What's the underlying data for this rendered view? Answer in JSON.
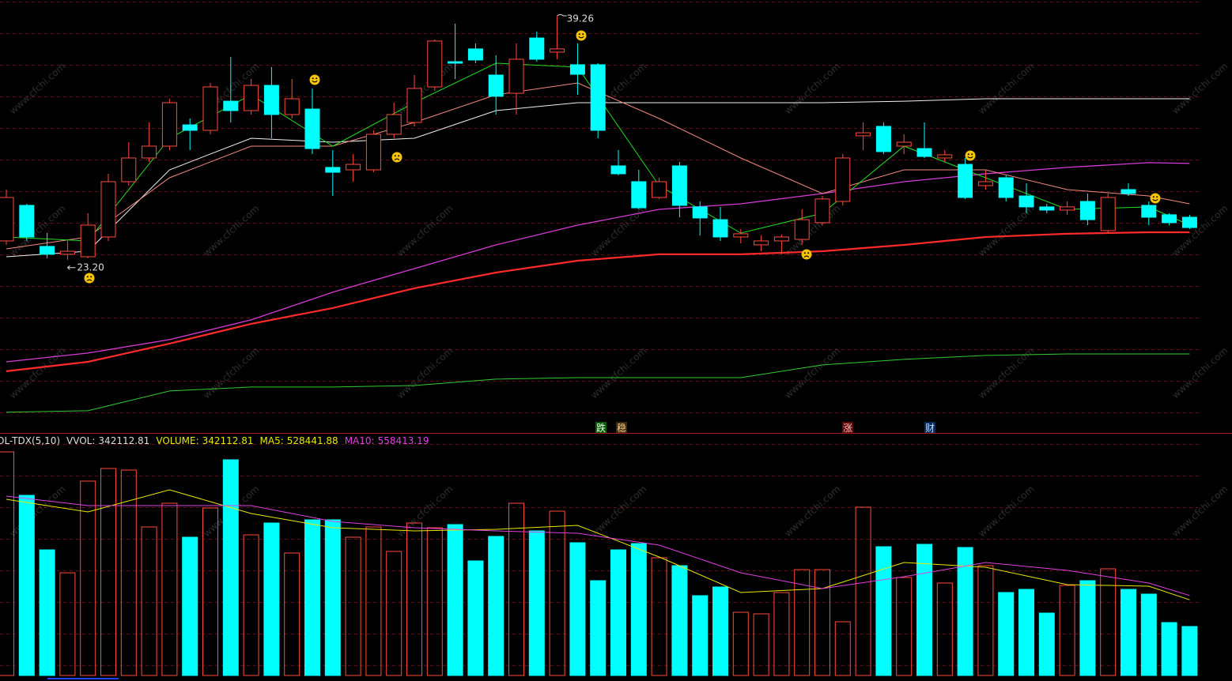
{
  "chart_data": [
    {
      "type": "candlestick",
      "ylim": [
        11.8,
        40.3
      ],
      "up_color": "#ff4a3d",
      "down_color": "#00ffff",
      "open": [
        24.44,
        26.78,
        24.08,
        23.56,
        23.4,
        24.7,
        28.34,
        29.9,
        30.68,
        32.08,
        31.72,
        33.64,
        33.02,
        34.68,
        32.76,
        33.12,
        29.28,
        29.12,
        29.12,
        31.46,
        32.24,
        34.58,
        36.24,
        37.08,
        35.36,
        34.16,
        37.8,
        36.87,
        36.04,
        36.04,
        29.38,
        28.34,
        27.3,
        29.38,
        26.68,
        25.84,
        24.7,
        24.18,
        24.44,
        24.54,
        25.64,
        27.04,
        31.36,
        31.98,
        30.68,
        30.52,
        29.9,
        29.48,
        28.08,
        28.6,
        27.4,
        26.68,
        26.47,
        27.04,
        25.12,
        27.82,
        26.78,
        26.16,
        26.0
      ],
      "high": [
        27.82,
        26.88,
        24.96,
        24.44,
        26.26,
        28.86,
        30.94,
        32.24,
        33.8,
        32.5,
        34.84,
        36.56,
        35.1,
        35.88,
        35.1,
        34.48,
        30.42,
        30.16,
        31.72,
        33.54,
        35.36,
        37.7,
        38.74,
        37.44,
        36.66,
        37.44,
        38.22,
        39.26,
        37.44,
        36.14,
        30.42,
        29.12,
        28.6,
        29.64,
        27.04,
        26.68,
        25.22,
        24.8,
        24.86,
        26.52,
        27.4,
        30.16,
        32.24,
        32.24,
        31.46,
        32.24,
        30.42,
        29.9,
        29.12,
        28.76,
        28.24,
        26.88,
        27.04,
        27.56,
        27.56,
        28.24,
        27.04,
        26.26,
        26.16
      ],
      "low": [
        24.18,
        24.44,
        23.3,
        23.2,
        23.3,
        24.44,
        28.08,
        29.64,
        30.42,
        30.42,
        31.46,
        32.24,
        32.76,
        31.2,
        32.5,
        30.16,
        27.4,
        28.34,
        28.96,
        31.2,
        31.98,
        34.32,
        35.1,
        36.14,
        32.76,
        32.76,
        36.24,
        36.4,
        34.06,
        31.2,
        28.76,
        26.52,
        27.2,
        26.0,
        24.8,
        24.44,
        24.28,
        23.76,
        23.56,
        24.18,
        25.48,
        26.78,
        30.42,
        30.16,
        30.16,
        29.9,
        29.64,
        27.2,
        27.82,
        27.04,
        26.26,
        26.26,
        26.16,
        25.48,
        24.96,
        27.4,
        25.48,
        25.48,
        25.22
      ],
      "close": [
        27.3,
        24.7,
        23.56,
        23.76,
        25.48,
        28.34,
        29.9,
        30.68,
        33.54,
        31.72,
        34.58,
        33.02,
        34.68,
        32.76,
        33.8,
        30.52,
        28.96,
        29.48,
        31.46,
        32.76,
        34.48,
        37.6,
        36.14,
        36.35,
        33.96,
        36.4,
        36.4,
        37.08,
        35.41,
        31.72,
        28.86,
        26.62,
        28.34,
        26.78,
        25.95,
        24.7,
        24.91,
        24.44,
        24.7,
        25.84,
        27.2,
        29.9,
        31.56,
        30.32,
        30.94,
        30.0,
        30.11,
        27.3,
        28.34,
        27.3,
        26.68,
        26.47,
        26.68,
        25.84,
        27.3,
        27.56,
        26.0,
        25.64,
        25.32
      ],
      "lines": [
        {
          "color": "#ff2a2a",
          "width": 2.2,
          "x": [
            0,
            4,
            8,
            12,
            16,
            20,
            24,
            28,
            32,
            36,
            40,
            44,
            48,
            52,
            56,
            58
          ],
          "values": [
            15.86,
            16.48,
            17.68,
            18.98,
            20.02,
            21.32,
            22.36,
            23.14,
            23.56,
            23.56,
            23.76,
            24.18,
            24.7,
            24.91,
            25.01,
            25.01
          ]
        },
        {
          "color": "#d63cd6",
          "width": 1.3,
          "x": [
            0,
            4,
            8,
            12,
            16,
            20,
            24,
            28,
            32,
            36,
            40,
            44,
            48,
            52,
            56,
            58
          ],
          "values": [
            16.48,
            17.06,
            17.94,
            19.24,
            21.06,
            22.62,
            24.18,
            25.48,
            26.52,
            26.88,
            27.56,
            28.34,
            28.86,
            29.28,
            29.59,
            29.54
          ]
        },
        {
          "color": "#33cc33",
          "width": 1,
          "x": [
            0,
            4,
            8,
            12,
            16,
            20,
            24,
            28,
            32,
            36,
            40,
            44,
            48,
            52,
            56,
            58
          ],
          "values": [
            13.16,
            13.26,
            14.56,
            14.82,
            14.82,
            14.92,
            15.34,
            15.44,
            15.44,
            15.44,
            16.28,
            16.64,
            16.9,
            17.0,
            17.0,
            17.0
          ]
        },
        {
          "color": "#f0f0f0",
          "width": 1,
          "x": [
            0,
            4,
            8,
            12,
            16,
            20,
            24,
            28,
            32,
            36,
            40,
            44,
            48,
            52,
            56,
            58
          ],
          "values": [
            23.4,
            23.76,
            29.12,
            31.2,
            30.94,
            31.2,
            33.02,
            33.54,
            33.54,
            33.54,
            33.54,
            33.64,
            33.8,
            33.8,
            33.8,
            33.8
          ]
        },
        {
          "color": "#f08a80",
          "width": 1,
          "x": [
            0,
            4,
            8,
            12,
            16,
            20,
            24,
            28,
            32,
            36,
            40,
            44,
            48,
            52,
            56,
            58
          ],
          "values": [
            23.92,
            24.7,
            28.6,
            30.68,
            30.68,
            32.24,
            34.06,
            34.84,
            32.5,
            29.9,
            27.56,
            29.12,
            29.12,
            27.82,
            27.4,
            26.88
          ]
        },
        {
          "color": "#22dd22",
          "width": 1,
          "x": [
            0,
            4,
            8,
            12,
            16,
            20,
            24,
            28,
            32,
            36,
            40,
            44,
            48,
            52,
            56,
            58
          ],
          "values": [
            24.7,
            24.44,
            31.2,
            34.06,
            30.68,
            33.54,
            36.14,
            35.88,
            28.08,
            24.96,
            26.26,
            30.68,
            28.6,
            26.52,
            26.68,
            25.48
          ]
        }
      ],
      "annotations": [
        {
          "value": 39.26,
          "label": "39.26"
        },
        {
          "value": 23.2,
          "label": "23.20"
        }
      ],
      "markers": [
        "跌",
        "稳",
        "涨",
        "财"
      ],
      "watermark": "www.cfchi.com"
    },
    {
      "type": "volume",
      "title": "OL-TDX(5,10)",
      "stats": [
        {
          "label": "VVOL:",
          "value": 342112.81,
          "color": "#dddddd"
        },
        {
          "label": "VOLUME:",
          "value": 342112.81,
          "color": "#e8e800"
        },
        {
          "label": "MA5:",
          "value": 528441.88,
          "color": "#e8e800"
        },
        {
          "label": "MA10:",
          "value": 558413.19,
          "color": "#e040e0"
        }
      ],
      "ylim": [
        0,
        1627810
      ],
      "values": [
        1561600,
        1258100,
        877400,
        717300,
        1357400,
        1445700,
        1434700,
        1037400,
        1202900,
        965700,
        1169800,
        1506400,
        982200,
        1065000,
        855300,
        1087000,
        1087000,
        965700,
        1037400,
        866300,
        1065000,
        1031900,
        1053900,
        800100,
        971200,
        1202900,
        1009800,
        1147700,
        927000,
        662200,
        877400,
        921500,
        822200,
        767000,
        557300,
        618000,
        441400,
        430400,
        579400,
        739400,
        739400,
        375200,
        1175300,
        899400,
        684200,
        916000,
        645600,
        893900,
        767000,
        579400,
        601500,
        435900,
        629100,
        662200,
        744900,
        601500,
        568400,
        369700,
        342112.81
      ],
      "lines": [
        {
          "color": "#e8e800",
          "width": 1,
          "x": [
            0,
            4,
            8,
            12,
            16,
            20,
            24,
            28,
            32,
            36,
            40,
            44,
            48,
            52,
            56,
            58
          ],
          "values": [
            1230500,
            1142200,
            1296700,
            1131200,
            1031900,
            1009800,
            1020800,
            1048400,
            827700,
            579400,
            607000,
            789100,
            756000,
            634600,
            623500,
            528441.88
          ]
        },
        {
          "color": "#e040e0",
          "width": 1,
          "x": [
            0,
            4,
            8,
            12,
            16,
            20,
            24,
            28,
            32,
            36,
            40,
            44,
            48,
            52,
            56,
            58
          ],
          "values": [
            1252600,
            1186400,
            1186400,
            1186400,
            1076000,
            1031900,
            1009800,
            993200,
            910500,
            717300,
            607000,
            689800,
            789100,
            733900,
            645600,
            558413.19
          ]
        }
      ]
    }
  ]
}
